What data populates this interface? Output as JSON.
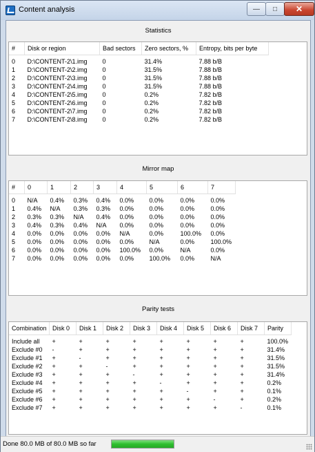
{
  "window": {
    "title": "Content analysis"
  },
  "statistics": {
    "title": "Statistics",
    "columns": [
      "#",
      "Disk or region",
      "Bad sectors",
      "Zero sectors, %",
      "Entropy, bits per byte"
    ],
    "rows": [
      [
        "0",
        "D:\\CONTENT-2\\1.img",
        "0",
        "31.4%",
        "7.88 b/B"
      ],
      [
        "1",
        "D:\\CONTENT-2\\2.img",
        "0",
        "31.5%",
        "7.88 b/B"
      ],
      [
        "2",
        "D:\\CONTENT-2\\3.img",
        "0",
        "31.5%",
        "7.88 b/B"
      ],
      [
        "3",
        "D:\\CONTENT-2\\4.img",
        "0",
        "31.5%",
        "7.88 b/B"
      ],
      [
        "4",
        "D:\\CONTENT-2\\5.img",
        "0",
        "0.2%",
        "7.82 b/B"
      ],
      [
        "5",
        "D:\\CONTENT-2\\6.img",
        "0",
        "0.2%",
        "7.82 b/B"
      ],
      [
        "6",
        "D:\\CONTENT-2\\7.img",
        "0",
        "0.2%",
        "7.82 b/B"
      ],
      [
        "7",
        "D:\\CONTENT-2\\8.img",
        "0",
        "0.2%",
        "7.82 b/B"
      ]
    ]
  },
  "mirror": {
    "title": "Mirror map",
    "columns": [
      "#",
      "0",
      "1",
      "2",
      "3",
      "4",
      "5",
      "6",
      "7"
    ],
    "rows": [
      [
        "0",
        "N/A",
        "0.4%",
        "0.3%",
        "0.4%",
        "0.0%",
        "0.0%",
        "0.0%",
        "0.0%"
      ],
      [
        "1",
        "0.4%",
        "N/A",
        "0.3%",
        "0.3%",
        "0.0%",
        "0.0%",
        "0.0%",
        "0.0%"
      ],
      [
        "2",
        "0.3%",
        "0.3%",
        "N/A",
        "0.4%",
        "0.0%",
        "0.0%",
        "0.0%",
        "0.0%"
      ],
      [
        "3",
        "0.4%",
        "0.3%",
        "0.4%",
        "N/A",
        "0.0%",
        "0.0%",
        "0.0%",
        "0.0%"
      ],
      [
        "4",
        "0.0%",
        "0.0%",
        "0.0%",
        "0.0%",
        "N/A",
        "0.0%",
        "100.0%",
        "0.0%"
      ],
      [
        "5",
        "0.0%",
        "0.0%",
        "0.0%",
        "0.0%",
        "0.0%",
        "N/A",
        "0.0%",
        "100.0%"
      ],
      [
        "6",
        "0.0%",
        "0.0%",
        "0.0%",
        "0.0%",
        "100.0%",
        "0.0%",
        "N/A",
        "0.0%"
      ],
      [
        "7",
        "0.0%",
        "0.0%",
        "0.0%",
        "0.0%",
        "0.0%",
        "100.0%",
        "0.0%",
        "N/A"
      ]
    ]
  },
  "parity": {
    "title": "Parity tests",
    "columns": [
      "Combination",
      "Disk 0",
      "Disk 1",
      "Disk 2",
      "Disk 3",
      "Disk 4",
      "Disk 5",
      "Disk 6",
      "Disk 7",
      "Parity"
    ],
    "rows": [
      [
        "Include all",
        "+",
        "+",
        "+",
        "+",
        "+",
        "+",
        "+",
        "+",
        "100.0%"
      ],
      [
        "Exclude #0",
        "-",
        "+",
        "+",
        "+",
        "+",
        "+",
        "+",
        "+",
        "31.4%"
      ],
      [
        "Exclude #1",
        "+",
        "-",
        "+",
        "+",
        "+",
        "+",
        "+",
        "+",
        "31.5%"
      ],
      [
        "Exclude #2",
        "+",
        "+",
        "-",
        "+",
        "+",
        "+",
        "+",
        "+",
        "31.5%"
      ],
      [
        "Exclude #3",
        "+",
        "+",
        "+",
        "-",
        "+",
        "+",
        "+",
        "+",
        "31.4%"
      ],
      [
        "Exclude #4",
        "+",
        "+",
        "+",
        "+",
        "-",
        "+",
        "+",
        "+",
        "0.2%"
      ],
      [
        "Exclude #5",
        "+",
        "+",
        "+",
        "+",
        "+",
        "-",
        "+",
        "+",
        "0.1%"
      ],
      [
        "Exclude #6",
        "+",
        "+",
        "+",
        "+",
        "+",
        "+",
        "-",
        "+",
        "0.2%"
      ],
      [
        "Exclude #7",
        "+",
        "+",
        "+",
        "+",
        "+",
        "+",
        "+",
        "-",
        "0.1%"
      ]
    ]
  },
  "status": {
    "text": "Done 80.0 MB of 80.0 MB so far",
    "progress": 1.0
  },
  "colors": {
    "progress": "#2fbf2f",
    "close_button": "#c9452f"
  },
  "icons": {
    "app": "content-analysis-app-icon",
    "minimize": "minimize-icon",
    "maximize": "maximize-icon",
    "close": "close-icon",
    "grip": "resize-grip-icon"
  }
}
